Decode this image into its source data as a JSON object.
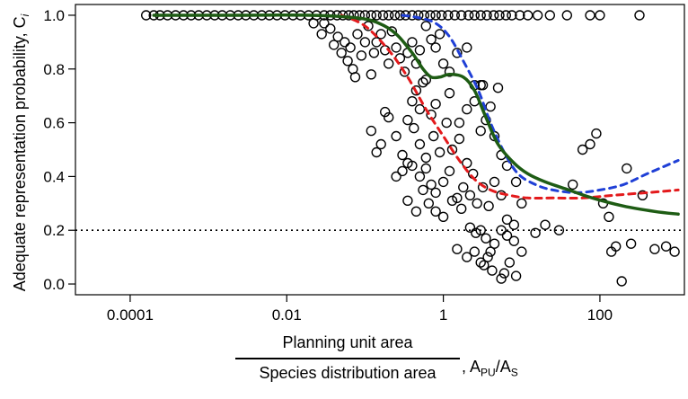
{
  "chart_data": {
    "type": "scatter",
    "title": "",
    "xscale": "log10",
    "xlim": [
      2e-05,
      1200
    ],
    "ylim": [
      -0.04,
      1.04
    ],
    "xticks": [
      0.0001,
      0.01,
      1,
      100
    ],
    "xtick_labels": [
      "0.0001",
      "0.01",
      "1",
      "100"
    ],
    "yticks": [
      0.0,
      0.2,
      0.4,
      0.6,
      0.8,
      1.0
    ],
    "ytick_labels": [
      "0.0",
      "0.2",
      "0.4",
      "0.6",
      "0.8",
      "1.0"
    ],
    "ylabel": "Adequate representation probability, C",
    "ylabel_subscript": "i",
    "xlabel_numerator": "Planning unit area",
    "xlabel_denominator": "Species distribution area",
    "xlabel_ratio": ", A",
    "xlabel_ratio_sub1": "PU",
    "xlabel_ratio_mid": "/A",
    "xlabel_ratio_sub2": "S",
    "reference_line": {
      "y": 0.2,
      "style": "dotted",
      "color": "#000000"
    },
    "series": [
      {
        "kind": "points",
        "marker": "open-circle",
        "color": "#000000",
        "points": [
          [
            0.00016,
            1.0
          ],
          [
            0.0002,
            1.0
          ],
          [
            0.00024,
            1.0
          ],
          [
            0.0003,
            1.0
          ],
          [
            0.00038,
            1.0
          ],
          [
            0.00048,
            1.0
          ],
          [
            0.0006,
            1.0
          ],
          [
            0.00075,
            1.0
          ],
          [
            0.00095,
            1.0
          ],
          [
            0.0012,
            1.0
          ],
          [
            0.0015,
            1.0
          ],
          [
            0.0019,
            1.0
          ],
          [
            0.0024,
            1.0
          ],
          [
            0.003,
            1.0
          ],
          [
            0.0038,
            1.0
          ],
          [
            0.0048,
            1.0
          ],
          [
            0.006,
            1.0
          ],
          [
            0.0075,
            1.0
          ],
          [
            0.0095,
            1.0
          ],
          [
            0.012,
            1.0
          ],
          [
            0.015,
            1.0
          ],
          [
            0.019,
            1.0
          ],
          [
            0.024,
            1.0
          ],
          [
            0.03,
            1.0
          ],
          [
            0.036,
            1.0
          ],
          [
            0.044,
            1.0
          ],
          [
            0.052,
            1.0
          ],
          [
            0.062,
            1.0
          ],
          [
            0.072,
            1.0
          ],
          [
            0.085,
            1.0
          ],
          [
            0.1,
            1.0
          ],
          [
            0.12,
            1.0
          ],
          [
            0.14,
            1.0
          ],
          [
            0.17,
            1.0
          ],
          [
            0.2,
            1.0
          ],
          [
            0.24,
            1.0
          ],
          [
            0.28,
            1.0
          ],
          [
            0.33,
            1.0
          ],
          [
            0.4,
            1.0
          ],
          [
            0.48,
            1.0
          ],
          [
            0.57,
            1.0
          ],
          [
            0.68,
            1.0
          ],
          [
            0.8,
            1.0
          ],
          [
            0.95,
            1.0
          ],
          [
            1.15,
            1.0
          ],
          [
            1.4,
            1.0
          ],
          [
            1.7,
            1.0
          ],
          [
            2.1,
            1.0
          ],
          [
            2.5,
            1.0
          ],
          [
            3.0,
            1.0
          ],
          [
            3.6,
            1.0
          ],
          [
            4.4,
            1.0
          ],
          [
            5.2,
            1.0
          ],
          [
            6.3,
            1.0
          ],
          [
            7.5,
            1.0
          ],
          [
            9.5,
            1.0
          ],
          [
            12,
            1.0
          ],
          [
            16,
            1.0
          ],
          [
            23,
            1.0
          ],
          [
            38,
            1.0
          ],
          [
            75,
            1.0
          ],
          [
            100,
            1.0
          ],
          [
            320,
            1.0
          ],
          [
            0.022,
            0.97
          ],
          [
            0.03,
            0.97
          ],
          [
            0.028,
            0.93
          ],
          [
            0.036,
            0.95
          ],
          [
            0.04,
            0.89
          ],
          [
            0.045,
            0.92
          ],
          [
            0.05,
            0.86
          ],
          [
            0.055,
            0.9
          ],
          [
            0.06,
            0.83
          ],
          [
            0.065,
            0.88
          ],
          [
            0.07,
            0.8
          ],
          [
            0.075,
            0.77
          ],
          [
            0.08,
            0.93
          ],
          [
            0.09,
            0.85
          ],
          [
            0.1,
            0.9
          ],
          [
            0.11,
            0.96
          ],
          [
            0.12,
            0.78
          ],
          [
            0.13,
            0.86
          ],
          [
            0.14,
            0.9
          ],
          [
            0.16,
            0.93
          ],
          [
            0.18,
            0.87
          ],
          [
            0.2,
            0.82
          ],
          [
            0.22,
            0.94
          ],
          [
            0.25,
            0.88
          ],
          [
            0.28,
            0.84
          ],
          [
            0.32,
            0.79
          ],
          [
            0.35,
            0.86
          ],
          [
            0.4,
            0.9
          ],
          [
            0.45,
            0.82
          ],
          [
            0.5,
            0.87
          ],
          [
            0.55,
            0.75
          ],
          [
            0.6,
            0.96
          ],
          [
            0.7,
            0.91
          ],
          [
            0.8,
            0.88
          ],
          [
            0.9,
            0.93
          ],
          [
            1.0,
            0.82
          ],
          [
            1.2,
            0.79
          ],
          [
            1.5,
            0.86
          ],
          [
            2.0,
            0.88
          ],
          [
            2.5,
            0.74
          ],
          [
            3.0,
            0.74
          ],
          [
            3.2,
            0.74
          ],
          [
            4.0,
            0.66
          ],
          [
            5.0,
            0.73
          ],
          [
            0.35,
            0.61
          ],
          [
            0.4,
            0.68
          ],
          [
            0.45,
            0.72
          ],
          [
            0.5,
            0.65
          ],
          [
            0.6,
            0.76
          ],
          [
            0.7,
            0.63
          ],
          [
            0.8,
            0.67
          ],
          [
            1.2,
            0.71
          ],
          [
            1.6,
            0.6
          ],
          [
            2.0,
            0.65
          ],
          [
            2.5,
            0.68
          ],
          [
            0.12,
            0.57
          ],
          [
            0.14,
            0.49
          ],
          [
            0.16,
            0.52
          ],
          [
            0.18,
            0.64
          ],
          [
            0.2,
            0.62
          ],
          [
            0.25,
            0.55
          ],
          [
            0.3,
            0.48
          ],
          [
            0.35,
            0.45
          ],
          [
            0.42,
            0.58
          ],
          [
            0.5,
            0.52
          ],
          [
            0.6,
            0.47
          ],
          [
            0.75,
            0.55
          ],
          [
            0.9,
            0.49
          ],
          [
            1.1,
            0.6
          ],
          [
            1.3,
            0.5
          ],
          [
            1.6,
            0.54
          ],
          [
            2.0,
            0.45
          ],
          [
            2.4,
            0.41
          ],
          [
            3.0,
            0.57
          ],
          [
            3.5,
            0.61
          ],
          [
            4.5,
            0.55
          ],
          [
            5.5,
            0.48
          ],
          [
            6.5,
            0.44
          ],
          [
            8.5,
            0.38
          ],
          [
            0.25,
            0.4
          ],
          [
            0.3,
            0.42
          ],
          [
            0.4,
            0.44
          ],
          [
            0.5,
            0.4
          ],
          [
            0.6,
            0.43
          ],
          [
            0.7,
            0.37
          ],
          [
            0.8,
            0.34
          ],
          [
            1.0,
            0.38
          ],
          [
            1.2,
            0.42
          ],
          [
            1.5,
            0.32
          ],
          [
            1.8,
            0.36
          ],
          [
            2.2,
            0.33
          ],
          [
            2.7,
            0.3
          ],
          [
            3.2,
            0.36
          ],
          [
            3.8,
            0.29
          ],
          [
            4.5,
            0.38
          ],
          [
            5.5,
            0.33
          ],
          [
            6.5,
            0.24
          ],
          [
            8,
            0.22
          ],
          [
            10,
            0.3
          ],
          [
            0.35,
            0.31
          ],
          [
            0.45,
            0.27
          ],
          [
            0.55,
            0.35
          ],
          [
            0.65,
            0.3
          ],
          [
            0.8,
            0.27
          ],
          [
            1.0,
            0.25
          ],
          [
            1.3,
            0.31
          ],
          [
            1.7,
            0.28
          ],
          [
            2.2,
            0.21
          ],
          [
            2.6,
            0.19
          ],
          [
            3.0,
            0.2
          ],
          [
            3.5,
            0.17
          ],
          [
            4.0,
            0.12
          ],
          [
            4.5,
            0.15
          ],
          [
            5.5,
            0.2
          ],
          [
            6.5,
            0.18
          ],
          [
            8,
            0.16
          ],
          [
            10,
            0.12
          ],
          [
            1.5,
            0.13
          ],
          [
            2.0,
            0.1
          ],
          [
            2.5,
            0.12
          ],
          [
            3.0,
            0.08
          ],
          [
            3.3,
            0.07
          ],
          [
            3.7,
            0.1
          ],
          [
            4.2,
            0.05
          ],
          [
            5.5,
            0.02
          ],
          [
            6,
            0.04
          ],
          [
            7,
            0.08
          ],
          [
            8.5,
            0.03
          ],
          [
            15,
            0.19
          ],
          [
            20,
            0.22
          ],
          [
            30,
            0.2
          ],
          [
            45,
            0.37
          ],
          [
            60,
            0.5
          ],
          [
            75,
            0.52
          ],
          [
            90,
            0.56
          ],
          [
            110,
            0.3
          ],
          [
            140,
            0.12
          ],
          [
            160,
            0.14
          ],
          [
            190,
            0.01
          ],
          [
            250,
            0.15
          ],
          [
            350,
            0.33
          ],
          [
            500,
            0.13
          ],
          [
            700,
            0.14
          ],
          [
            900,
            0.12
          ],
          [
            130,
            0.25
          ],
          [
            220,
            0.43
          ]
        ]
      },
      {
        "kind": "smooth",
        "style": "dashed",
        "color": "#e31a1c",
        "x": [
          0.05,
          0.1,
          0.2,
          0.35,
          0.6,
          1.0,
          1.6,
          2.5,
          4,
          7,
          12,
          25,
          60,
          150,
          400,
          1000
        ],
        "y": [
          1.0,
          0.96,
          0.87,
          0.77,
          0.65,
          0.55,
          0.46,
          0.39,
          0.35,
          0.33,
          0.32,
          0.32,
          0.32,
          0.33,
          0.34,
          0.35
        ]
      },
      {
        "kind": "smooth",
        "style": "dashed",
        "color": "#1f3fd6",
        "x": [
          0.3,
          0.5,
          0.8,
          1.2,
          1.8,
          2.8,
          4,
          6,
          9,
          15,
          25,
          50,
          100,
          200,
          400,
          1000
        ],
        "y": [
          1.0,
          0.99,
          0.97,
          0.92,
          0.83,
          0.72,
          0.6,
          0.49,
          0.41,
          0.37,
          0.35,
          0.34,
          0.35,
          0.37,
          0.41,
          0.46
        ]
      },
      {
        "kind": "smooth",
        "style": "solid",
        "color": "#1e5c14",
        "x": [
          0.0002,
          0.002,
          0.02,
          0.08,
          0.15,
          0.25,
          0.4,
          0.55,
          0.7,
          0.9,
          1.2,
          1.8,
          2.5,
          3.5,
          5,
          8,
          12,
          20,
          40,
          80,
          200,
          500,
          1000
        ],
        "y": [
          1.0,
          1.0,
          1.0,
          0.99,
          0.97,
          0.93,
          0.86,
          0.8,
          0.77,
          0.77,
          0.78,
          0.77,
          0.72,
          0.62,
          0.52,
          0.45,
          0.41,
          0.38,
          0.35,
          0.32,
          0.29,
          0.27,
          0.26
        ]
      }
    ]
  }
}
